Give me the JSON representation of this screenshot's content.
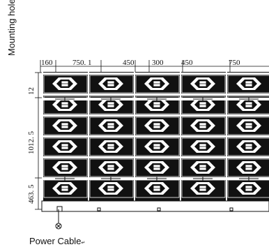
{
  "labels": {
    "mounting": "Mounting holes",
    "mounting_mark": "↵",
    "power_cable": "Power Cable",
    "power_mark": "↵"
  },
  "dimensions_top": [
    "160",
    "750. 1",
    "450",
    "300",
    "450",
    "750"
  ],
  "dimensions_left": [
    "12",
    "1012. 5",
    "463. 5"
  ],
  "grid": {
    "columns": 5,
    "rows": 6
  },
  "colors": {
    "ink": "#111111",
    "paper": "#ffffff"
  },
  "icons": {
    "cable_connector": "circle-x-icon"
  }
}
